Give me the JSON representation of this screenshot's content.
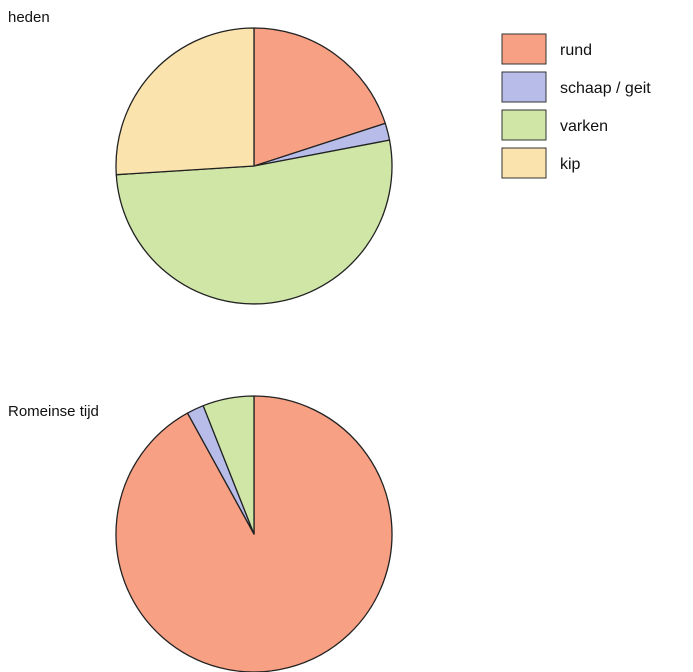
{
  "chart_data": {
    "type": "pie",
    "categories": [
      "rund",
      "schaap / geit",
      "varken",
      "kip"
    ],
    "colors": [
      "#f7a083",
      "#b7bde8",
      "#cfe6a7",
      "#fbe3ae"
    ],
    "legend_position": "top-right",
    "charts": [
      {
        "title": "heden",
        "values": [
          20,
          2,
          52,
          26
        ]
      },
      {
        "title": "Romeinse tijd",
        "values": [
          92,
          2,
          6,
          0
        ]
      }
    ]
  }
}
